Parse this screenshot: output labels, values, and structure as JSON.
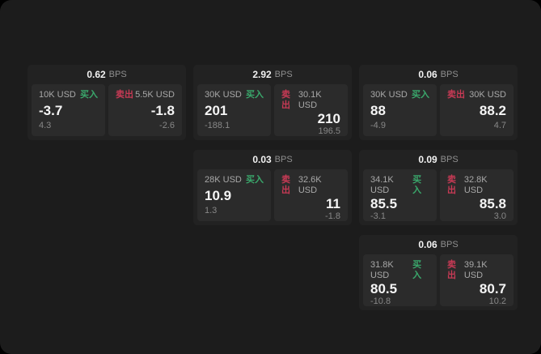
{
  "labels": {
    "bps_unit": "BPS",
    "buy": "买入",
    "sell": "卖出"
  },
  "colors": {
    "page_bg": "#1c1c1c",
    "card_bg": "#222222",
    "panel_bg": "#2b2b2b",
    "buy_green": "#3aa86c",
    "sell_red": "#c73a55"
  },
  "cards": [
    {
      "bps": "0.62",
      "grid": {
        "col": 1,
        "row": 1
      },
      "buy": {
        "amount": "10K USD",
        "value": "-3.7",
        "sub": "4.3"
      },
      "sell": {
        "amount": "5.5K USD",
        "value": "-1.8",
        "sub": "-2.6"
      }
    },
    {
      "bps": "2.92",
      "grid": {
        "col": 2,
        "row": 1
      },
      "buy": {
        "amount": "30K USD",
        "value": "201",
        "sub": "-188.1"
      },
      "sell": {
        "amount": "30.1K USD",
        "value": "210",
        "sub": "196.5"
      }
    },
    {
      "bps": "0.06",
      "grid": {
        "col": 3,
        "row": 1
      },
      "buy": {
        "amount": "30K USD",
        "value": "88",
        "sub": "-4.9"
      },
      "sell": {
        "amount": "30K USD",
        "value": "88.2",
        "sub": "4.7"
      }
    },
    {
      "bps": "0.03",
      "grid": {
        "col": 2,
        "row": 2
      },
      "buy": {
        "amount": "28K USD",
        "value": "10.9",
        "sub": "1.3"
      },
      "sell": {
        "amount": "32.6K USD",
        "value": "11",
        "sub": "-1.8"
      }
    },
    {
      "bps": "0.09",
      "grid": {
        "col": 3,
        "row": 2
      },
      "buy": {
        "amount": "34.1K USD",
        "value": "85.5",
        "sub": "-3.1"
      },
      "sell": {
        "amount": "32.8K USD",
        "value": "85.8",
        "sub": "3.0"
      }
    },
    {
      "bps": "0.06",
      "grid": {
        "col": 3,
        "row": 3
      },
      "buy": {
        "amount": "31.8K USD",
        "value": "80.5",
        "sub": "-10.8"
      },
      "sell": {
        "amount": "39.1K USD",
        "value": "80.7",
        "sub": "10.2"
      }
    }
  ]
}
